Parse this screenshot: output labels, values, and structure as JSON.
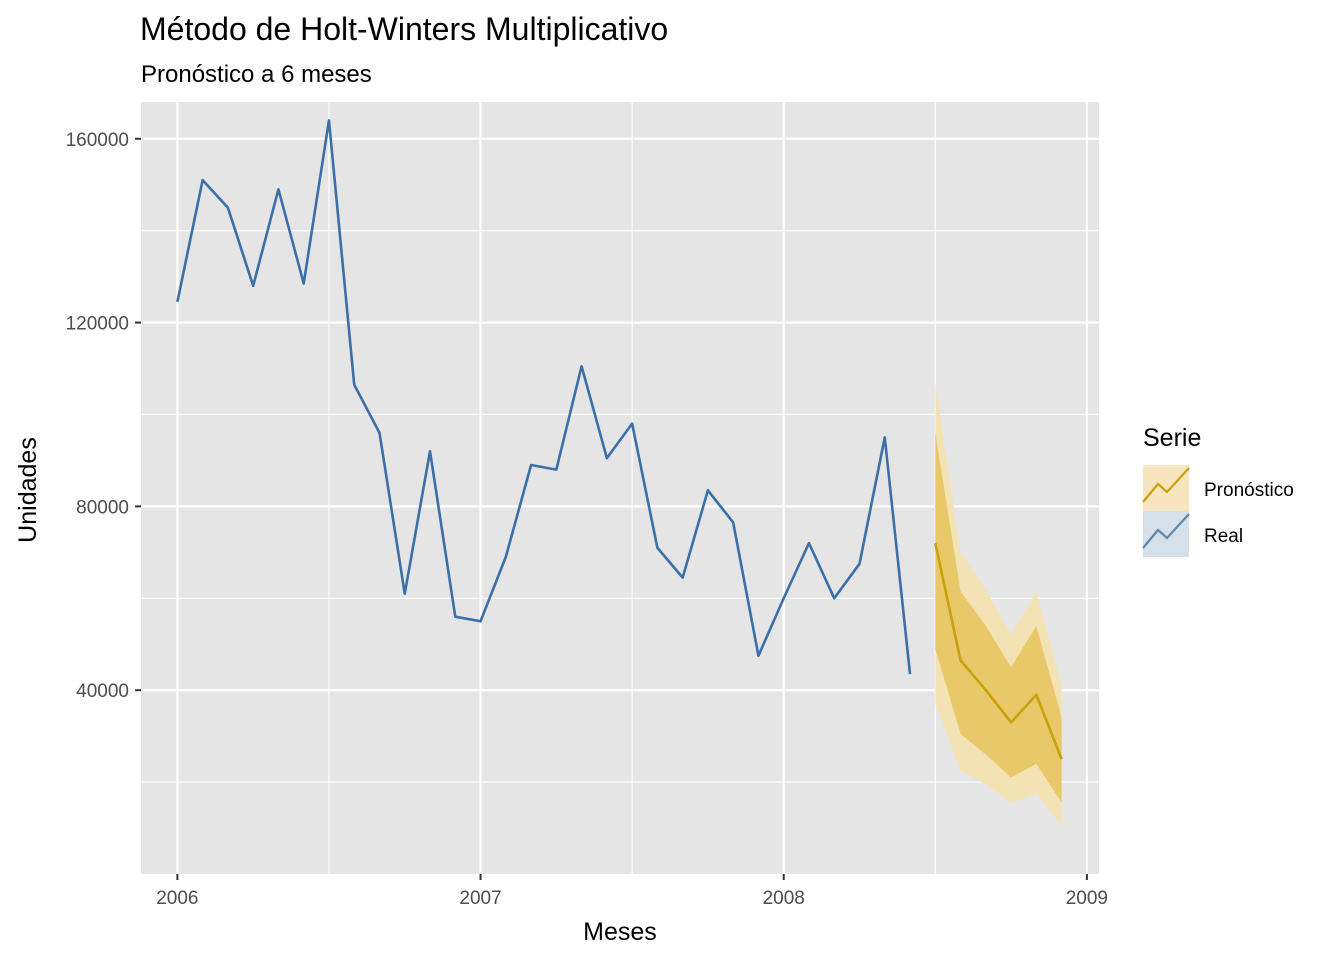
{
  "chart_data": {
    "type": "line",
    "title": "Método de Holt-Winters Multiplicativo",
    "subtitle": "Pronóstico a 6 meses",
    "xlabel": "Meses",
    "ylabel": "Unidades",
    "xlim": [
      2005.88,
      2009.04
    ],
    "ylim": [
      0,
      168000
    ],
    "x_ticks": [
      2006,
      2007,
      2008,
      2009
    ],
    "x_tick_labels": [
      "2006",
      "2007",
      "2008",
      "2009"
    ],
    "y_ticks": [
      40000,
      80000,
      120000,
      160000
    ],
    "y_tick_labels": [
      "40000",
      "80000",
      "120000",
      "160000"
    ],
    "grid": true,
    "legend": {
      "title": "Serie",
      "position": "right"
    },
    "colors": {
      "panel_bg": "#e5e5e5",
      "grid": "#ffffff",
      "real": "#3a6fa8",
      "forecast": "#c9a20a",
      "band80": "#e9c86a",
      "band95": "#f3e2b3",
      "legend_real_fill": "#d4e0ea",
      "legend_real_line": "#5d88a8",
      "legend_fc_fill": "#f6e5be"
    },
    "series": [
      {
        "name": "Real",
        "x": [
          2006.0,
          2006.0833,
          2006.1667,
          2006.25,
          2006.3333,
          2006.4167,
          2006.5,
          2006.5833,
          2006.6667,
          2006.75,
          2006.8333,
          2006.9167,
          2007.0,
          2007.0833,
          2007.1667,
          2007.25,
          2007.3333,
          2007.4167,
          2007.5,
          2007.5833,
          2007.6667,
          2007.75,
          2007.8333,
          2007.9167,
          2008.0,
          2008.0833,
          2008.1667,
          2008.25,
          2008.3333,
          2008.4167
        ],
        "values": [
          124500,
          151000,
          145000,
          128000,
          149000,
          128500,
          164000,
          106500,
          96000,
          61000,
          92000,
          56000,
          55000,
          69000,
          89000,
          88000,
          110500,
          90500,
          98000,
          71000,
          64500,
          83500,
          76500,
          47500,
          60000,
          72000,
          60000,
          67500,
          95000,
          43500
        ]
      },
      {
        "name": "Pronóstico",
        "x": [
          2008.5,
          2008.5833,
          2008.6667,
          2008.75,
          2008.8333,
          2008.9167
        ],
        "values": [
          72000,
          46500,
          40000,
          33000,
          39000,
          25000
        ],
        "lo80": [
          49000,
          30500,
          26000,
          21000,
          24000,
          15500
        ],
        "hi80": [
          96000,
          61500,
          54000,
          45000,
          54000,
          34000
        ],
        "lo95": [
          37000,
          22500,
          19500,
          15500,
          17500,
          10500
        ],
        "hi95": [
          107000,
          70000,
          62000,
          52000,
          61500,
          41000
        ]
      }
    ]
  }
}
